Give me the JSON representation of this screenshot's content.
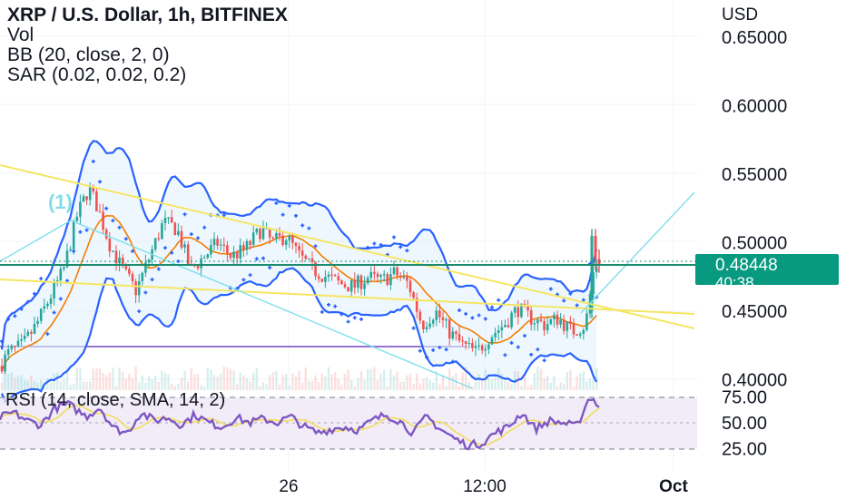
{
  "header": {
    "title": "XRP / U.S. Dollar, 1h, BITFINEX",
    "indicators": [
      "Vol",
      "BB (20, close, 2, 0)",
      "SAR (0.02, 0.02, 0.2)"
    ]
  },
  "rsi": {
    "label": "RSI (14, close, SMA, 14, 2)",
    "ticks": [
      "75.00",
      "50.00",
      "25.00"
    ]
  },
  "price_badge": {
    "price": "0.48448",
    "countdown": "40:38"
  },
  "colors": {
    "up": "#26a69a",
    "down": "#ef5350",
    "bb": "#2962ff",
    "sma": "#f57c00",
    "trendline": "#f5e663",
    "channel": "#80deea",
    "support": "#9575cd",
    "price_line": "#1b8c6e",
    "rsi_line": "#7e57c2",
    "rsi_ma": "#f2dc5d",
    "rsi_band": "#ede7f6"
  },
  "chart_data": {
    "type": "candlestick",
    "symbol": "XRP / U.S. Dollar",
    "interval": "1h",
    "exchange": "BITFINEX",
    "y_unit": "USD",
    "y_ticks": [
      "0.65000",
      "0.60000",
      "0.55000",
      "0.50000",
      "0.45000",
      "0.40000"
    ],
    "ylim": [
      0.398,
      0.668
    ],
    "x_ticks": [
      "26",
      "12:00",
      "Oct"
    ],
    "last_price": 0.48448,
    "annotations": [
      "(1)"
    ],
    "rsi_ylim": [
      20,
      80
    ],
    "rsi_band": [
      30,
      70
    ],
    "rsi_mid": 50,
    "close_path": [
      [
        0,
        0.41
      ],
      [
        10,
        0.42
      ],
      [
        25,
        0.425
      ],
      [
        40,
        0.44
      ],
      [
        55,
        0.46
      ],
      [
        70,
        0.48
      ],
      [
        85,
        0.52
      ],
      [
        98,
        0.54
      ],
      [
        108,
        0.525
      ],
      [
        120,
        0.5
      ],
      [
        135,
        0.48
      ],
      [
        150,
        0.465
      ],
      [
        165,
        0.49
      ],
      [
        180,
        0.515
      ],
      [
        195,
        0.51
      ],
      [
        210,
        0.48
      ],
      [
        225,
        0.49
      ],
      [
        240,
        0.5
      ],
      [
        255,
        0.49
      ],
      [
        270,
        0.495
      ],
      [
        288,
        0.51
      ],
      [
        300,
        0.5
      ],
      [
        315,
        0.505
      ],
      [
        330,
        0.49
      ],
      [
        345,
        0.48
      ],
      [
        360,
        0.475
      ],
      [
        375,
        0.47
      ],
      [
        390,
        0.468
      ],
      [
        405,
        0.475
      ],
      [
        420,
        0.472
      ],
      [
        435,
        0.478
      ],
      [
        450,
        0.47
      ],
      [
        465,
        0.44
      ],
      [
        480,
        0.45
      ],
      [
        495,
        0.435
      ],
      [
        510,
        0.425
      ],
      [
        525,
        0.42
      ],
      [
        540,
        0.432
      ],
      [
        555,
        0.44
      ],
      [
        570,
        0.452
      ],
      [
        585,
        0.445
      ],
      [
        600,
        0.44
      ],
      [
        615,
        0.445
      ],
      [
        630,
        0.435
      ],
      [
        645,
        0.44
      ],
      [
        655,
        0.484
      ]
    ],
    "rsi_path": [
      [
        0,
        55
      ],
      [
        15,
        60
      ],
      [
        30,
        52
      ],
      [
        45,
        48
      ],
      [
        60,
        64
      ],
      [
        75,
        68
      ],
      [
        85,
        62
      ],
      [
        95,
        56
      ],
      [
        110,
        65
      ],
      [
        125,
        45
      ],
      [
        140,
        40
      ],
      [
        155,
        60
      ],
      [
        170,
        52
      ],
      [
        185,
        55
      ],
      [
        200,
        48
      ],
      [
        215,
        58
      ],
      [
        230,
        50
      ],
      [
        245,
        46
      ],
      [
        260,
        55
      ],
      [
        275,
        50
      ],
      [
        290,
        54
      ],
      [
        305,
        50
      ],
      [
        320,
        56
      ],
      [
        335,
        46
      ],
      [
        350,
        40
      ],
      [
        365,
        44
      ],
      [
        380,
        46
      ],
      [
        395,
        43
      ],
      [
        410,
        52
      ],
      [
        425,
        58
      ],
      [
        440,
        52
      ],
      [
        455,
        40
      ],
      [
        470,
        56
      ],
      [
        485,
        44
      ],
      [
        500,
        35
      ],
      [
        515,
        28
      ],
      [
        530,
        30
      ],
      [
        545,
        40
      ],
      [
        560,
        46
      ],
      [
        575,
        60
      ],
      [
        590,
        44
      ],
      [
        605,
        52
      ],
      [
        620,
        50
      ],
      [
        635,
        46
      ],
      [
        650,
        76
      ],
      [
        660,
        66
      ]
    ]
  }
}
